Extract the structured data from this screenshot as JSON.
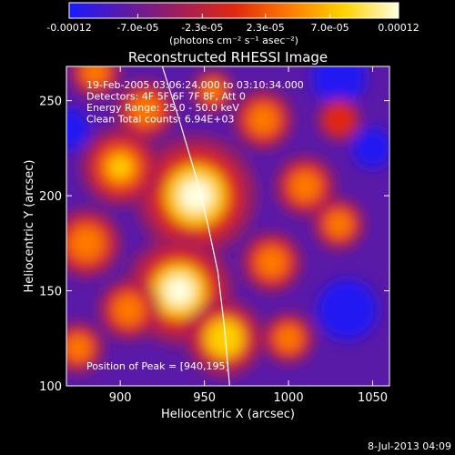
{
  "chart_data": {
    "type": "heatmap",
    "title": "Reconstructed RHESSI Image",
    "xlabel": "Heliocentric X (arcsec)",
    "ylabel": "Heliocentric Y (arcsec)",
    "colorbar": {
      "tick_labels": [
        "-0.00012",
        "-7.0e-05",
        "-2.3e-05",
        "2.3e-05",
        "7.0e-05",
        "0.00012"
      ],
      "tick_values": [
        -0.00012,
        -7e-05,
        -2.3e-05,
        2.3e-05,
        7e-05,
        0.00012
      ],
      "units_label": "(photons cm⁻² s⁻¹ asec⁻²)",
      "range": [
        -0.00012,
        0.00012
      ],
      "colors": [
        "#1a1aff",
        "#5a1aa8",
        "#a01e5a",
        "#e02810",
        "#ff7a00",
        "#ffd200",
        "#ffffe0"
      ]
    },
    "xlim": [
      868,
      1060
    ],
    "ylim": [
      100,
      268
    ],
    "x_ticks": [
      900,
      950,
      1000,
      1050
    ],
    "y_ticks": [
      100,
      150,
      200,
      250
    ],
    "annotations": [
      "19-Feb-2005 03:06:24.000 to 03:10:34.000",
      "Detectors: 4F 5F 6F 7F 8F, Att 0",
      "Energy Range: 25.0 - 50.0 keV",
      "Clean     Total counts: 6.94E+03"
    ],
    "peak_label": "Position of Peak = [940,195]",
    "peak": [
      940,
      195
    ],
    "limb_curve": {
      "x": [
        925,
        935,
        945,
        952,
        958,
        962,
        965
      ],
      "y": [
        268,
        240,
        210,
        185,
        160,
        130,
        100
      ]
    },
    "blobs": [
      {
        "x": 945,
        "y": 200,
        "r": 28,
        "v": 1.0
      },
      {
        "x": 935,
        "y": 150,
        "r": 25,
        "v": 0.95
      },
      {
        "x": 962,
        "y": 125,
        "r": 18,
        "v": 0.8
      },
      {
        "x": 900,
        "y": 215,
        "r": 18,
        "v": 0.7
      },
      {
        "x": 915,
        "y": 245,
        "r": 14,
        "v": 0.6
      },
      {
        "x": 885,
        "y": 265,
        "r": 12,
        "v": 0.5
      },
      {
        "x": 880,
        "y": 175,
        "r": 16,
        "v": 0.55
      },
      {
        "x": 905,
        "y": 140,
        "r": 14,
        "v": 0.55
      },
      {
        "x": 990,
        "y": 165,
        "r": 14,
        "v": 0.6
      },
      {
        "x": 1010,
        "y": 205,
        "r": 14,
        "v": 0.55
      },
      {
        "x": 1030,
        "y": 185,
        "r": 12,
        "v": 0.5
      },
      {
        "x": 985,
        "y": 240,
        "r": 14,
        "v": 0.6
      },
      {
        "x": 1000,
        "y": 125,
        "r": 12,
        "v": 0.45
      },
      {
        "x": 875,
        "y": 120,
        "r": 12,
        "v": 0.45
      },
      {
        "x": 955,
        "y": 255,
        "r": 10,
        "v": 0.5
      },
      {
        "x": 1030,
        "y": 240,
        "r": 10,
        "v": 0.35
      }
    ],
    "cold_spots": [
      {
        "x": 1035,
        "y": 140,
        "r": 18
      },
      {
        "x": 1030,
        "y": 262,
        "r": 16
      },
      {
        "x": 1050,
        "y": 225,
        "r": 12
      },
      {
        "x": 870,
        "y": 235,
        "r": 12
      }
    ]
  },
  "timestamp": "8-Jul-2013 04:09"
}
